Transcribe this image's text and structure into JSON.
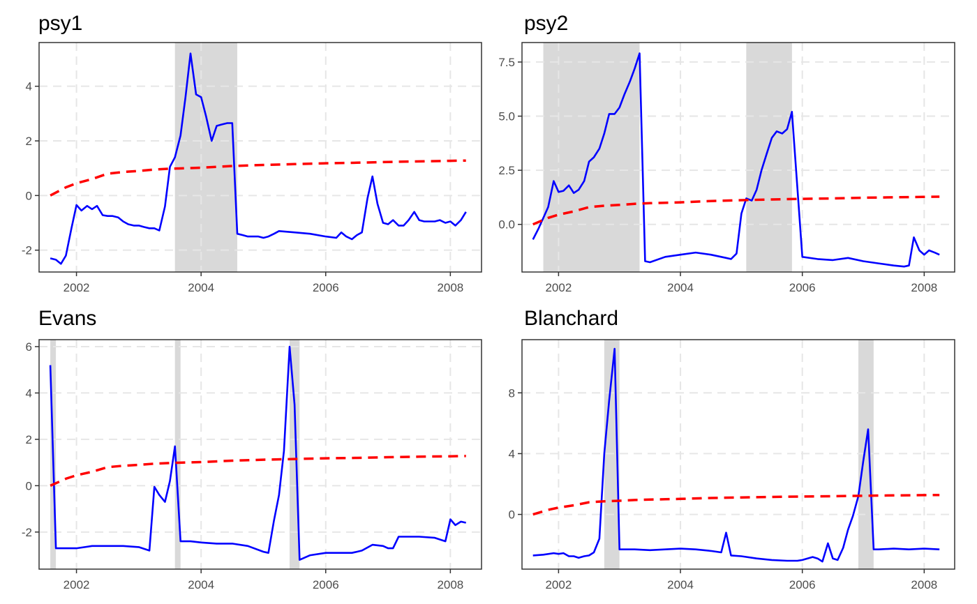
{
  "colors": {
    "statistic": "#0000ff",
    "critical_value": "#ff0000",
    "shade": "#d9d9d9"
  },
  "chart_data": [
    {
      "type": "line",
      "title": "psy1",
      "xlim": [
        2001.4,
        2008.5
      ],
      "ylim": [
        -2.8,
        5.6
      ],
      "xticks": [
        2002,
        2004,
        2006,
        2008
      ],
      "yticks": [
        -2,
        0,
        2,
        4
      ],
      "ytick_labels": [
        "-2",
        "0",
        "2",
        "4"
      ],
      "shaded": [
        [
          2003.58,
          2004.58
        ]
      ],
      "series": [
        {
          "role": "statistic",
          "x": [
            2001.58,
            2001.67,
            2001.75,
            2001.83,
            2001.92,
            2002.0,
            2002.08,
            2002.17,
            2002.25,
            2002.33,
            2002.42,
            2002.5,
            2002.58,
            2002.67,
            2002.75,
            2002.83,
            2002.92,
            2003.0,
            2003.08,
            2003.17,
            2003.25,
            2003.33,
            2003.42,
            2003.5,
            2003.58,
            2003.67,
            2003.75,
            2003.83,
            2003.92,
            2004.0,
            2004.08,
            2004.17,
            2004.25,
            2004.33,
            2004.42,
            2004.5,
            2004.58,
            2004.67,
            2004.75,
            2004.83,
            2004.92,
            2005.0,
            2005.08,
            2005.17,
            2005.25,
            2005.5,
            2005.75,
            2006.0,
            2006.17,
            2006.25,
            2006.33,
            2006.42,
            2006.5,
            2006.58,
            2006.67,
            2006.75,
            2006.83,
            2006.92,
            2007.0,
            2007.08,
            2007.17,
            2007.25,
            2007.33,
            2007.42,
            2007.5,
            2007.58,
            2007.75,
            2007.83,
            2007.92,
            2008.0,
            2008.08,
            2008.17,
            2008.25
          ],
          "y": [
            -2.3,
            -2.35,
            -2.5,
            -2.2,
            -1.2,
            -0.35,
            -0.55,
            -0.38,
            -0.5,
            -0.38,
            -0.72,
            -0.75,
            -0.75,
            -0.8,
            -0.95,
            -1.05,
            -1.1,
            -1.1,
            -1.15,
            -1.2,
            -1.2,
            -1.28,
            -0.4,
            1.05,
            1.4,
            2.2,
            3.6,
            5.2,
            3.7,
            3.6,
            2.9,
            2.0,
            2.55,
            2.6,
            2.65,
            2.65,
            -1.4,
            -1.45,
            -1.5,
            -1.5,
            -1.5,
            -1.55,
            -1.5,
            -1.4,
            -1.3,
            -1.35,
            -1.4,
            -1.5,
            -1.55,
            -1.35,
            -1.5,
            -1.6,
            -1.45,
            -1.35,
            -0.1,
            0.7,
            -0.3,
            -1.0,
            -1.05,
            -0.9,
            -1.1,
            -1.1,
            -0.9,
            -0.6,
            -0.9,
            -0.95,
            -0.95,
            -0.9,
            -1.0,
            -0.95,
            -1.1,
            -0.9,
            -0.6
          ]
        },
        {
          "role": "critical_value",
          "x": [
            2001.58,
            2001.83,
            2002.0,
            2002.25,
            2002.5,
            2002.75,
            2003.0,
            2003.25,
            2003.5,
            2003.75,
            2004.0,
            2004.5,
            2005.0,
            2005.5,
            2006.0,
            2006.5,
            2007.0,
            2007.5,
            2008.0,
            2008.25
          ],
          "y": [
            0.0,
            0.3,
            0.45,
            0.6,
            0.8,
            0.86,
            0.9,
            0.95,
            0.98,
            1.0,
            1.02,
            1.08,
            1.12,
            1.15,
            1.18,
            1.2,
            1.23,
            1.25,
            1.27,
            1.28
          ]
        }
      ]
    },
    {
      "type": "line",
      "title": "psy2",
      "xlim": [
        2001.4,
        2008.5
      ],
      "ylim": [
        -2.2,
        8.4
      ],
      "xticks": [
        2002,
        2004,
        2006,
        2008
      ],
      "yticks": [
        0,
        2.5,
        5,
        7.5
      ],
      "ytick_labels": [
        "0.0",
        "2.5",
        "5.0",
        "7.5"
      ],
      "shaded": [
        [
          2001.75,
          2003.33
        ],
        [
          2005.08,
          2005.83
        ]
      ],
      "series": [
        {
          "role": "statistic",
          "x": [
            2001.58,
            2001.67,
            2001.75,
            2001.83,
            2001.92,
            2002.0,
            2002.08,
            2002.17,
            2002.25,
            2002.33,
            2002.42,
            2002.5,
            2002.58,
            2002.67,
            2002.75,
            2002.83,
            2002.92,
            2003.0,
            2003.08,
            2003.17,
            2003.25,
            2003.33,
            2003.42,
            2003.5,
            2003.75,
            2004.0,
            2004.25,
            2004.5,
            2004.67,
            2004.75,
            2004.83,
            2004.92,
            2005.0,
            2005.08,
            2005.17,
            2005.25,
            2005.33,
            2005.42,
            2005.5,
            2005.58,
            2005.67,
            2005.75,
            2005.83,
            2006.0,
            2006.25,
            2006.5,
            2006.75,
            2007.0,
            2007.25,
            2007.5,
            2007.67,
            2007.75,
            2007.83,
            2007.92,
            2008.0,
            2008.08,
            2008.17,
            2008.25
          ],
          "y": [
            -0.7,
            -0.2,
            0.3,
            0.8,
            2.0,
            1.5,
            1.55,
            1.8,
            1.45,
            1.6,
            2.0,
            2.9,
            3.1,
            3.5,
            4.2,
            5.1,
            5.1,
            5.4,
            6.0,
            6.6,
            7.2,
            7.9,
            -1.7,
            -1.75,
            -1.5,
            -1.4,
            -1.3,
            -1.4,
            -1.5,
            -1.55,
            -1.6,
            -1.35,
            0.5,
            1.2,
            1.1,
            1.6,
            2.5,
            3.3,
            4.0,
            4.3,
            4.2,
            4.4,
            5.2,
            -1.5,
            -1.6,
            -1.65,
            -1.55,
            -1.7,
            -1.8,
            -1.9,
            -1.95,
            -1.9,
            -0.6,
            -1.2,
            -1.4,
            -1.2,
            -1.3,
            -1.4
          ]
        },
        {
          "role": "critical_value",
          "x": [
            2001.58,
            2001.83,
            2002.0,
            2002.25,
            2002.5,
            2002.75,
            2003.0,
            2003.25,
            2003.5,
            2003.75,
            2004.0,
            2004.5,
            2005.0,
            2005.5,
            2006.0,
            2006.5,
            2007.0,
            2007.5,
            2008.0,
            2008.25
          ],
          "y": [
            0.0,
            0.3,
            0.45,
            0.6,
            0.8,
            0.86,
            0.9,
            0.95,
            0.98,
            1.0,
            1.02,
            1.08,
            1.12,
            1.15,
            1.18,
            1.2,
            1.23,
            1.25,
            1.27,
            1.28
          ]
        }
      ]
    },
    {
      "type": "line",
      "title": "Evans",
      "xlim": [
        2001.4,
        2008.5
      ],
      "ylim": [
        -3.6,
        6.3
      ],
      "xticks": [
        2002,
        2004,
        2006,
        2008
      ],
      "yticks": [
        -2,
        0,
        2,
        4,
        6
      ],
      "ytick_labels": [
        "-2",
        "0",
        "2",
        "4",
        "6"
      ],
      "shaded": [
        [
          2001.58,
          2001.67
        ],
        [
          2003.58,
          2003.67
        ],
        [
          2005.42,
          2005.58
        ]
      ],
      "series": [
        {
          "role": "statistic",
          "x": [
            2001.58,
            2001.67,
            2001.75,
            2002.0,
            2002.25,
            2002.5,
            2002.75,
            2003.0,
            2003.17,
            2003.25,
            2003.33,
            2003.42,
            2003.5,
            2003.58,
            2003.67,
            2003.75,
            2003.83,
            2004.0,
            2004.25,
            2004.5,
            2004.75,
            2005.0,
            2005.08,
            2005.17,
            2005.25,
            2005.33,
            2005.42,
            2005.5,
            2005.58,
            2005.75,
            2006.0,
            2006.25,
            2006.42,
            2006.5,
            2006.58,
            2006.75,
            2006.92,
            2007.0,
            2007.08,
            2007.17,
            2007.25,
            2007.5,
            2007.75,
            2007.92,
            2008.0,
            2008.08,
            2008.17,
            2008.25
          ],
          "y": [
            5.2,
            -2.7,
            -2.7,
            -2.7,
            -2.6,
            -2.6,
            -2.6,
            -2.65,
            -2.8,
            -0.05,
            -0.4,
            -0.7,
            0.2,
            1.7,
            -2.4,
            -2.4,
            -2.4,
            -2.45,
            -2.5,
            -2.5,
            -2.6,
            -2.85,
            -2.9,
            -1.5,
            -0.4,
            1.5,
            6.0,
            3.5,
            -3.2,
            -3.0,
            -2.9,
            -2.9,
            -2.9,
            -2.85,
            -2.8,
            -2.55,
            -2.6,
            -2.7,
            -2.7,
            -2.2,
            -2.2,
            -2.2,
            -2.25,
            -2.4,
            -1.45,
            -1.7,
            -1.55,
            -1.6
          ]
        },
        {
          "role": "critical_value",
          "x": [
            2001.58,
            2001.83,
            2002.0,
            2002.25,
            2002.5,
            2002.75,
            2003.0,
            2003.25,
            2003.5,
            2003.75,
            2004.0,
            2004.5,
            2005.0,
            2005.5,
            2006.0,
            2006.5,
            2007.0,
            2007.5,
            2008.0,
            2008.25
          ],
          "y": [
            0.0,
            0.3,
            0.45,
            0.6,
            0.8,
            0.86,
            0.9,
            0.95,
            0.98,
            1.0,
            1.02,
            1.08,
            1.12,
            1.15,
            1.18,
            1.2,
            1.23,
            1.25,
            1.27,
            1.28
          ]
        }
      ]
    },
    {
      "type": "line",
      "title": "Blanchard",
      "xlim": [
        2001.4,
        2008.5
      ],
      "ylim": [
        -3.6,
        11.5
      ],
      "xticks": [
        2002,
        2004,
        2006,
        2008
      ],
      "yticks": [
        0,
        4,
        8
      ],
      "ytick_labels": [
        "0",
        "4",
        "8"
      ],
      "shaded": [
        [
          2002.75,
          2003.0
        ],
        [
          2006.92,
          2007.17
        ]
      ],
      "series": [
        {
          "role": "statistic",
          "x": [
            2001.58,
            2001.75,
            2001.92,
            2002.0,
            2002.08,
            2002.17,
            2002.25,
            2002.33,
            2002.42,
            2002.5,
            2002.58,
            2002.67,
            2002.75,
            2002.83,
            2002.92,
            2003.0,
            2003.08,
            2003.25,
            2003.5,
            2003.75,
            2004.0,
            2004.25,
            2004.5,
            2004.67,
            2004.75,
            2004.83,
            2005.0,
            2005.25,
            2005.5,
            2005.75,
            2005.92,
            2006.0,
            2006.17,
            2006.25,
            2006.33,
            2006.42,
            2006.5,
            2006.58,
            2006.67,
            2006.75,
            2006.83,
            2006.92,
            2007.0,
            2007.08,
            2007.17,
            2007.25,
            2007.5,
            2007.75,
            2008.0,
            2008.25
          ],
          "y": [
            -2.7,
            -2.65,
            -2.55,
            -2.6,
            -2.55,
            -2.75,
            -2.75,
            -2.85,
            -2.75,
            -2.7,
            -2.5,
            -1.6,
            4.0,
            7.5,
            10.9,
            -2.3,
            -2.3,
            -2.3,
            -2.35,
            -2.3,
            -2.25,
            -2.3,
            -2.4,
            -2.5,
            -1.2,
            -2.7,
            -2.75,
            -2.9,
            -3.0,
            -3.05,
            -3.05,
            -3.0,
            -2.8,
            -2.9,
            -3.1,
            -1.9,
            -2.9,
            -3.0,
            -2.2,
            -1.0,
            -0.1,
            1.2,
            3.5,
            5.6,
            -2.3,
            -2.3,
            -2.25,
            -2.3,
            -2.25,
            -2.3
          ]
        },
        {
          "role": "critical_value",
          "x": [
            2001.58,
            2001.83,
            2002.0,
            2002.25,
            2002.5,
            2002.75,
            2003.0,
            2003.25,
            2003.5,
            2003.75,
            2004.0,
            2004.5,
            2005.0,
            2005.5,
            2006.0,
            2006.5,
            2007.0,
            2007.5,
            2008.0,
            2008.25
          ],
          "y": [
            0.0,
            0.3,
            0.45,
            0.6,
            0.8,
            0.86,
            0.9,
            0.95,
            0.98,
            1.0,
            1.02,
            1.08,
            1.12,
            1.15,
            1.18,
            1.2,
            1.23,
            1.25,
            1.27,
            1.28
          ]
        }
      ]
    }
  ]
}
